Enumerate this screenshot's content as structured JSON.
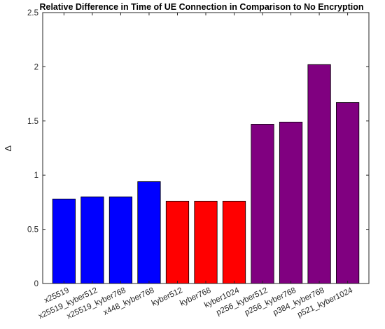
{
  "chart_data": {
    "type": "bar",
    "title": "Relative Difference in Time of UE Connection in Comparison to No Encryption",
    "xlabel": "",
    "ylabel": "Δ",
    "ylim": [
      0,
      2.5
    ],
    "yticks": [
      "0",
      "0.5",
      "1",
      "1.5",
      "2",
      "2.5"
    ],
    "ytick_values": [
      0,
      0.5,
      1,
      1.5,
      2,
      2.5
    ],
    "categories": [
      "x25519",
      "x25519_kyber512",
      "x25519_kyber768",
      "x448_kyber768",
      "kyber512",
      "kyber768",
      "kyber1024",
      "p256_kyber512",
      "p256_kyber768",
      "p384_kyber768",
      "p521_kyber1024"
    ],
    "values": [
      0.78,
      0.8,
      0.8,
      0.94,
      0.76,
      0.76,
      0.76,
      1.47,
      1.49,
      2.02,
      1.67
    ],
    "colors": [
      "#0000ff",
      "#0000ff",
      "#0000ff",
      "#0000ff",
      "#ff0000",
      "#ff0000",
      "#ff0000",
      "#800080",
      "#800080",
      "#800080",
      "#800080"
    ],
    "grid": false,
    "legend": "none"
  }
}
